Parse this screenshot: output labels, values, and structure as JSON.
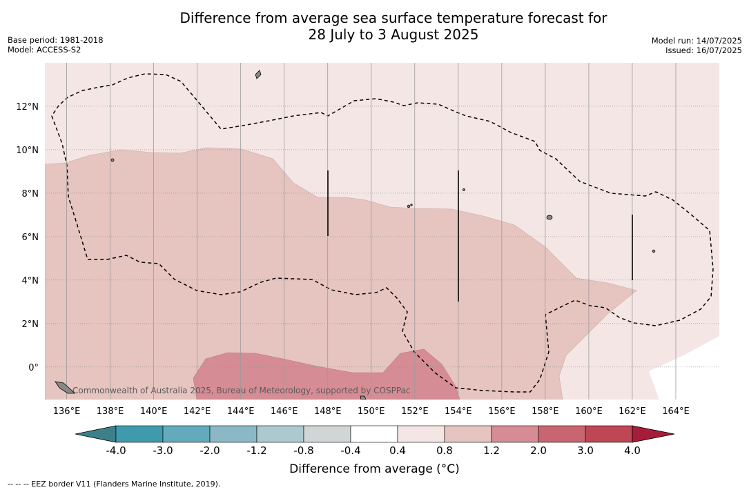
{
  "title_line1": "Difference from average sea surface temperature forecast for",
  "title_line2": "28 July to 3 August 2025",
  "base_period": "Base period: 1981-2018",
  "model": "Model: ACCESS-S2",
  "model_run": "Model run: 14/07/2025",
  "issued": "Issued: 16/07/2025",
  "map": {
    "lon_range": [
      135,
      166
    ],
    "lat_range": [
      -1.5,
      14
    ],
    "lon_ticks": [
      "136°E",
      "138°E",
      "140°E",
      "142°E",
      "144°E",
      "146°E",
      "148°E",
      "150°E",
      "152°E",
      "154°E",
      "156°E",
      "158°E",
      "160°E",
      "162°E",
      "164°E"
    ],
    "lat_ticks": [
      "12°N",
      "10°N",
      "8°N",
      "6°N",
      "4°N",
      "2°N",
      "0°"
    ],
    "watermark": "Commonwealth of Australia 2025, Bureau of Meteorology, supported by COSPPac"
  },
  "colorbar": {
    "tick_labels": [
      "-4.0",
      "-3.0",
      "-2.0",
      "-1.2",
      "-0.8",
      "-0.4",
      "0.4",
      "0.8",
      "1.2",
      "2.0",
      "3.0",
      "4.0"
    ],
    "colors": [
      "#3f9aab",
      "#63aabd",
      "#8ab8c6",
      "#abc9ce",
      "#d0d6d6",
      "#ffffff",
      "#f4e6e4",
      "#e6c4bf",
      "#d68c94",
      "#c96570",
      "#be4655"
    ],
    "under_color": "#3c8089",
    "over_color": "#a51d38",
    "title": "Difference from average (°C)"
  },
  "footer": "-- -- -- EEZ border V11 (Flanders Marine Institute, 2019)."
}
